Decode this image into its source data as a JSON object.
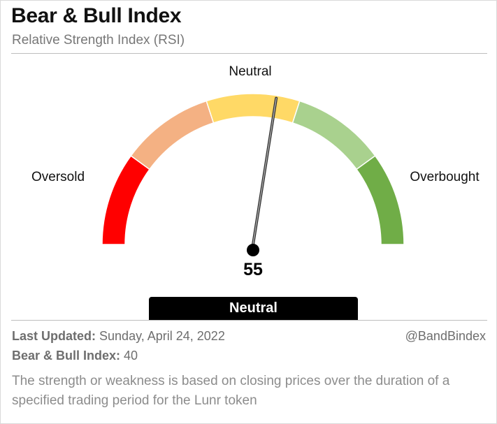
{
  "header": {
    "title": "Bear & Bull Index",
    "subtitle": "Relative Strength Index (RSI)"
  },
  "chart_data": {
    "type": "gauge",
    "value": 55,
    "min": 0,
    "max": 100,
    "segments": [
      {
        "color": "#ff0000"
      },
      {
        "color": "#f4b183"
      },
      {
        "color": "#ffd966"
      },
      {
        "color": "#a9d18e"
      },
      {
        "color": "#70ad47"
      }
    ],
    "labels": {
      "left": "Oversold",
      "top": "Neutral",
      "right": "Overbought"
    },
    "value_label": "55"
  },
  "status": {
    "label": "Neutral"
  },
  "footer": {
    "last_updated_label": "Last Updated:",
    "last_updated_value": "Sunday, April 24, 2022",
    "handle": "@BandBindex",
    "index_label": "Bear & Bull Index:",
    "index_value": "40",
    "description": "The strength or weakness is based on closing prices over the duration of a specified trading period for the Lunr token"
  }
}
